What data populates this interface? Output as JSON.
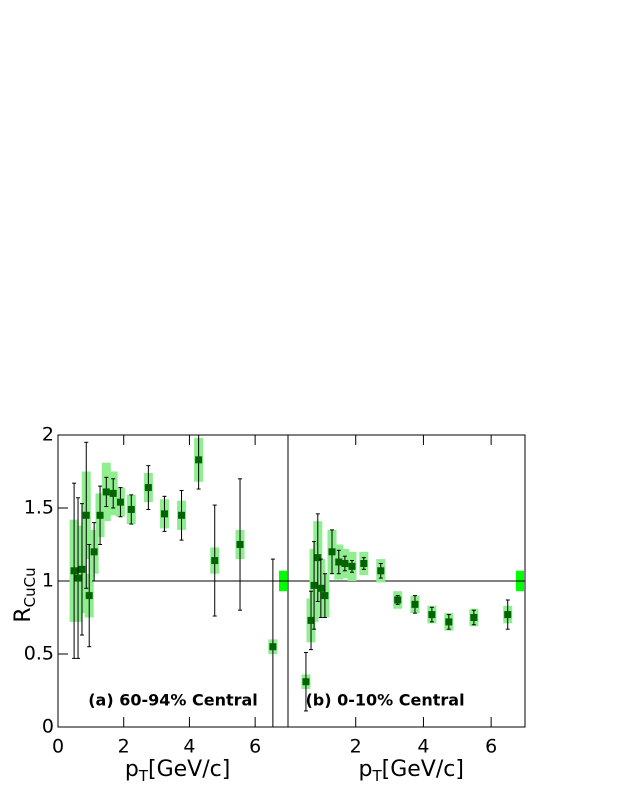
{
  "chart_data": [
    {
      "type": "scatter",
      "label": "(a) 60-94% Central",
      "xlabel": {
        "main": "p",
        "sub": "T",
        "rest": "[GeV/c]"
      },
      "ylabel": {
        "main": "R",
        "sub": "CuCu"
      },
      "xlim": [
        0,
        7.0
      ],
      "ylim": [
        0,
        2
      ],
      "xticks": [
        0,
        2,
        4,
        6
      ],
      "yticks": [
        0,
        0.5,
        1,
        1.5,
        2
      ],
      "ref_line": 1,
      "norm_sys": 0.07,
      "color": "#006400",
      "sys_color": "#90ee90",
      "norm_color": "#00ff00",
      "x": [
        0.49,
        0.61,
        0.73,
        0.86,
        0.95,
        1.1,
        1.28,
        1.47,
        1.68,
        1.9,
        2.23,
        2.75,
        3.24,
        3.76,
        4.28,
        4.77,
        5.54,
        6.54
      ],
      "values": [
        1.07,
        1.02,
        1.08,
        1.45,
        0.9,
        1.2,
        1.45,
        1.61,
        1.6,
        1.54,
        1.49,
        1.64,
        1.46,
        1.45,
        1.83,
        1.14,
        1.25,
        0.55
      ],
      "stat_errors": [
        0.6,
        0.55,
        0.45,
        0.5,
        0.35,
        0.2,
        0.2,
        0.1,
        0.1,
        0.1,
        0.1,
        0.15,
        0.12,
        0.17,
        0.2,
        0.38,
        0.45,
        0.6
      ],
      "sys_errors": [
        0.35,
        0.3,
        0.3,
        0.3,
        0.15,
        0.15,
        0.15,
        0.2,
        0.15,
        0.1,
        0.1,
        0.1,
        0.1,
        0.1,
        0.15,
        0.09,
        0.1,
        0.05
      ]
    },
    {
      "type": "scatter",
      "label": "(b) 0-10% Central",
      "xlabel": {
        "main": "p",
        "sub": "T",
        "rest": "[GeV/c]"
      },
      "xlim": [
        0,
        7.0
      ],
      "ylim": [
        0,
        2
      ],
      "xticks": [
        2,
        4,
        6
      ],
      "ref_line": 1,
      "norm_sys": 0.07,
      "color": "#006400",
      "sys_color": "#90ee90",
      "norm_color": "#00ff00",
      "x": [
        0.53,
        0.68,
        0.77,
        0.88,
        0.97,
        1.09,
        1.3,
        1.5,
        1.68,
        1.89,
        2.24,
        2.74,
        3.24,
        3.75,
        4.25,
        4.75,
        5.49,
        6.49
      ],
      "values": [
        0.31,
        0.73,
        0.97,
        1.16,
        0.95,
        0.9,
        1.2,
        1.13,
        1.12,
        1.1,
        1.12,
        1.07,
        0.87,
        0.84,
        0.77,
        0.72,
        0.75,
        0.77
      ],
      "stat_errors": [
        0.2,
        0.2,
        0.3,
        0.3,
        0.2,
        0.15,
        0.15,
        0.08,
        0.05,
        0.04,
        0.04,
        0.05,
        0.03,
        0.06,
        0.05,
        0.05,
        0.05,
        0.1
      ],
      "sys_errors": [
        0.05,
        0.15,
        0.25,
        0.25,
        0.2,
        0.15,
        0.15,
        0.12,
        0.1,
        0.1,
        0.08,
        0.08,
        0.06,
        0.06,
        0.06,
        0.06,
        0.06,
        0.06
      ]
    }
  ]
}
